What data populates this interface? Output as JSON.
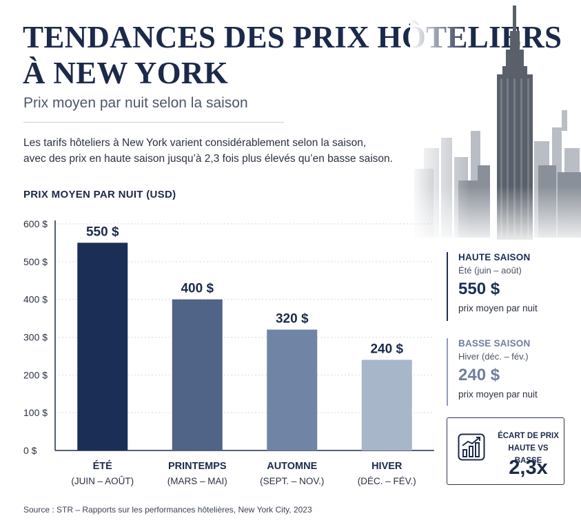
{
  "header": {
    "title_lines": [
      "TENDANCES DES PRIX HÔTELIERS",
      "À NEW YORK"
    ],
    "subtitle": "Prix moyen par nuit selon la saison",
    "intro_lines": [
      "Les tarifs hôteliers à New York varient considérablement selon la saison,",
      "avec des prix en haute saison jusqu’à 2,3 fois plus élevés qu’en basse saison."
    ]
  },
  "chart_heading": "PRIX MOYEN PAR NUIT (USD)",
  "chart_data": {
    "type": "bar",
    "categories": [
      "ÉTÉ",
      "PRINTEMPS",
      "AUTOMNE",
      "HIVER"
    ],
    "category_sublabels": [
      "(JUIN – AOÛT)",
      "(MARS – MAI)",
      "(SEPT. – NOV.)",
      "(DÉC. – FÉV.)"
    ],
    "values": [
      550,
      400,
      320,
      240
    ],
    "value_labels": [
      "550 $",
      "400 $",
      "320 $",
      "240 $"
    ],
    "bar_colors": [
      "#1b2f56",
      "#4f6486",
      "#7085a6",
      "#a8b6ca"
    ],
    "ylim": [
      0,
      600
    ],
    "yticks": [
      0,
      100,
      200,
      300,
      400,
      500,
      600
    ],
    "ytick_labels": [
      "0 $",
      "100 $",
      "200 $",
      "300 $",
      "400 $",
      "500 $",
      "600 $"
    ],
    "grid": true
  },
  "high_season": {
    "title": "HAUTE SAISON",
    "period": "Été (juin – août)",
    "value": "550 $",
    "note": "prix moyen par nuit"
  },
  "low_season": {
    "title": "BASSE SAISON",
    "period": "Hiver (déc. – fév.)",
    "value": "240 $",
    "note": "prix moyen par nuit"
  },
  "price_gap": {
    "label_lines": [
      "ÉCART DE PRIX",
      "HAUTE VS BASSE"
    ],
    "value": "2,3x",
    "icon": "bar-chart-trend-icon"
  },
  "source": "Source : STR – Rapports sur les performances hôtelières, New York City, 2023",
  "colors": {
    "navy": "#1b2f56",
    "slate": "#6f7f9b"
  }
}
